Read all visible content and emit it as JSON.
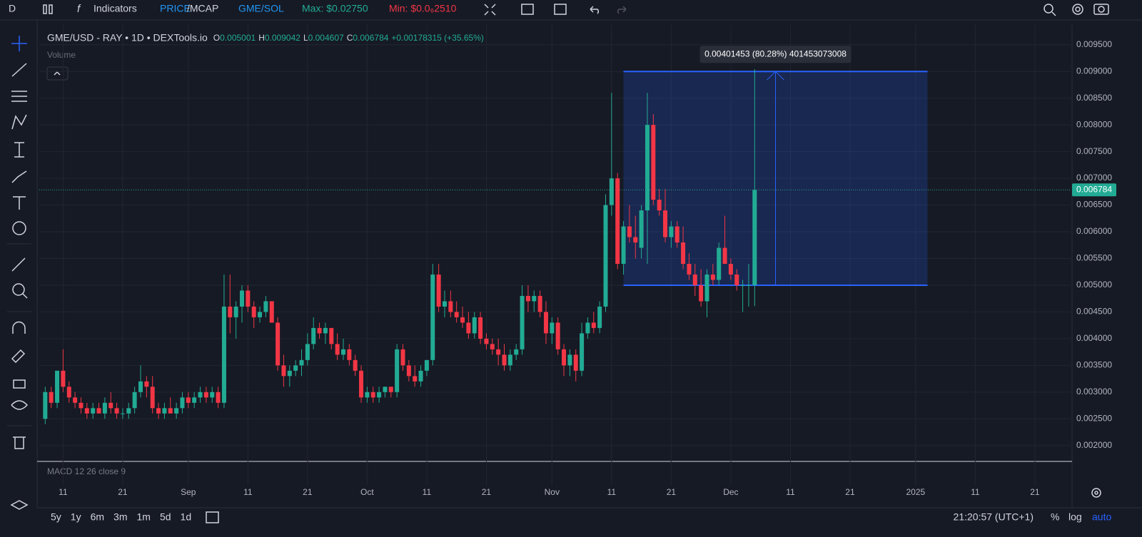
{
  "toolbar": {
    "symbol_short": "D",
    "indicators": "Indicators",
    "price": "PRICE",
    "mcap": "/MCAP",
    "pair": "GME/SOL",
    "max": "Max: $0.02750",
    "min": "Min: $0.0₆2510"
  },
  "chart_data": {
    "type": "candlestick",
    "legend": {
      "symbol": "GME/USD - RAY • 1D • DEXTools.io",
      "o_label": "O",
      "o": "0.005001",
      "h_label": "H",
      "h": "0.009042",
      "l_label": "L",
      "l": "0.004607",
      "c_label": "C",
      "c": "0.006784",
      "change": "+0.00178315 (+35.65%)",
      "volume": "Volume"
    },
    "macd": "MACD 12 26 close 9",
    "up_color": "#22ab94",
    "down_color": "#f23645",
    "open": [
      0.0025,
      0.003,
      0.0028,
      0.0034,
      0.0031,
      0.0029,
      0.0028,
      0.0027,
      0.0026,
      0.0027,
      0.0026,
      0.0028,
      0.0027,
      0.0026,
      0.0026,
      0.0027,
      0.003,
      0.0032,
      0.0031,
      0.0027,
      0.0026,
      0.0027,
      0.0026,
      0.0027,
      0.0029,
      0.0028,
      0.0029,
      0.003,
      0.0029,
      0.003,
      0.0028,
      0.0046,
      0.0044,
      0.0046,
      0.0049,
      0.0046,
      0.0044,
      0.0045,
      0.0047,
      0.0043,
      0.0035,
      0.0033,
      0.0034,
      0.0035,
      0.0036,
      0.0039,
      0.0042,
      0.0041,
      0.0042,
      0.0039,
      0.0037,
      0.0038,
      0.0036,
      0.0034,
      0.0029,
      0.003,
      0.0029,
      0.003,
      0.0031,
      0.003,
      0.0038,
      0.0035,
      0.0033,
      0.0032,
      0.0034,
      0.0036,
      0.0052,
      0.0046,
      0.0047,
      0.0045,
      0.0044,
      0.0043,
      0.0041,
      0.0044,
      0.004,
      0.0039,
      0.0038,
      0.0037,
      0.0035,
      0.0037,
      0.0038,
      0.0048,
      0.0047,
      0.0048,
      0.0045,
      0.0041,
      0.0043,
      0.0038,
      0.0035,
      0.0037,
      0.0034,
      0.0041,
      0.0043,
      0.0042,
      0.0046,
      0.0065,
      0.007,
      0.0054,
      0.0061,
      0.0059,
      0.0057,
      0.0064,
      0.008,
      0.0066,
      0.0064,
      0.0059,
      0.0061,
      0.0058,
      0.0054,
      0.0052,
      0.005,
      0.0047,
      0.0052,
      0.0051,
      0.0057,
      0.0054,
      0.0052,
      0.005,
      0.005,
      0.005001
    ],
    "high": [
      0.0031,
      0.0031,
      0.0034,
      0.0038,
      0.0032,
      0.003,
      0.0029,
      0.0028,
      0.0028,
      0.0028,
      0.0029,
      0.003,
      0.0028,
      0.0027,
      0.0028,
      0.0031,
      0.0035,
      0.0033,
      0.0033,
      0.0028,
      0.0028,
      0.0029,
      0.0028,
      0.003,
      0.003,
      0.003,
      0.0031,
      0.0031,
      0.0031,
      0.0031,
      0.0052,
      0.0052,
      0.0047,
      0.005,
      0.005,
      0.0047,
      0.0046,
      0.0048,
      0.0047,
      0.0044,
      0.0037,
      0.0035,
      0.0036,
      0.0038,
      0.0041,
      0.0044,
      0.0043,
      0.0043,
      0.0042,
      0.0041,
      0.004,
      0.0039,
      0.0037,
      0.0035,
      0.0031,
      0.0031,
      0.0031,
      0.0031,
      0.0031,
      0.0039,
      0.0039,
      0.0036,
      0.0035,
      0.0035,
      0.0036,
      0.0054,
      0.0054,
      0.0049,
      0.0049,
      0.0047,
      0.0046,
      0.0045,
      0.0045,
      0.0045,
      0.0041,
      0.004,
      0.004,
      0.0039,
      0.0038,
      0.0039,
      0.005,
      0.005,
      0.0049,
      0.0049,
      0.0047,
      0.0044,
      0.0044,
      0.0039,
      0.0038,
      0.0038,
      0.0043,
      0.0044,
      0.0045,
      0.0047,
      0.0067,
      0.0086,
      0.0071,
      0.0062,
      0.0065,
      0.0063,
      0.0065,
      0.0086,
      0.0082,
      0.0068,
      0.0068,
      0.0062,
      0.0062,
      0.0061,
      0.0056,
      0.0054,
      0.0053,
      0.0053,
      0.0054,
      0.0058,
      0.0063,
      0.0055,
      0.0053,
      0.0051,
      0.0054,
      0.009042
    ],
    "low": [
      0.0024,
      0.0027,
      0.0027,
      0.003,
      0.0028,
      0.0027,
      0.0026,
      0.0025,
      0.0025,
      0.0026,
      0.0025,
      0.0026,
      0.0025,
      0.0025,
      0.0025,
      0.0026,
      0.0029,
      0.0029,
      0.0026,
      0.0025,
      0.0025,
      0.0026,
      0.0025,
      0.0026,
      0.0027,
      0.0027,
      0.0028,
      0.0028,
      0.0028,
      0.0027,
      0.0027,
      0.0041,
      0.004,
      0.0043,
      0.0045,
      0.0042,
      0.0043,
      0.0044,
      0.0043,
      0.0034,
      0.0031,
      0.0031,
      0.0033,
      0.0033,
      0.0035,
      0.0038,
      0.004,
      0.0039,
      0.0038,
      0.0036,
      0.0036,
      0.0035,
      0.0033,
      0.0028,
      0.0028,
      0.0028,
      0.0028,
      0.0029,
      0.0029,
      0.0029,
      0.0034,
      0.0032,
      0.0031,
      0.0031,
      0.0033,
      0.0035,
      0.0045,
      0.0044,
      0.0044,
      0.0043,
      0.0042,
      0.004,
      0.004,
      0.0039,
      0.0038,
      0.0037,
      0.0035,
      0.0034,
      0.0034,
      0.0036,
      0.0037,
      0.0045,
      0.0045,
      0.0044,
      0.0039,
      0.0039,
      0.0037,
      0.0033,
      0.0033,
      0.0032,
      0.0033,
      0.004,
      0.0041,
      0.0041,
      0.0045,
      0.0063,
      0.0053,
      0.0052,
      0.0058,
      0.0055,
      0.0055,
      0.0054,
      0.0065,
      0.0063,
      0.0058,
      0.0057,
      0.0057,
      0.0053,
      0.0051,
      0.0048,
      0.0046,
      0.0044,
      0.005,
      0.005,
      0.0054,
      0.0051,
      0.0049,
      0.0045,
      0.0046,
      0.004607
    ],
    "close": [
      0.003,
      0.0028,
      0.0034,
      0.0031,
      0.0029,
      0.0028,
      0.0027,
      0.0026,
      0.0027,
      0.0026,
      0.0028,
      0.0027,
      0.0026,
      0.0026,
      0.0027,
      0.003,
      0.0032,
      0.0031,
      0.0027,
      0.0026,
      0.0027,
      0.0026,
      0.0027,
      0.0029,
      0.0028,
      0.0029,
      0.003,
      0.0029,
      0.003,
      0.0028,
      0.0046,
      0.0044,
      0.0046,
      0.0049,
      0.0046,
      0.0044,
      0.0045,
      0.0047,
      0.0043,
      0.0035,
      0.0033,
      0.0034,
      0.0035,
      0.0036,
      0.0039,
      0.0042,
      0.0041,
      0.0042,
      0.0039,
      0.0037,
      0.0038,
      0.0036,
      0.0034,
      0.0029,
      0.003,
      0.0029,
      0.003,
      0.0031,
      0.003,
      0.0038,
      0.0035,
      0.0033,
      0.0032,
      0.0034,
      0.0036,
      0.0052,
      0.0046,
      0.0047,
      0.0045,
      0.0044,
      0.0043,
      0.0041,
      0.0044,
      0.004,
      0.0039,
      0.0038,
      0.0037,
      0.0035,
      0.0037,
      0.0038,
      0.0048,
      0.0047,
      0.0048,
      0.0045,
      0.0041,
      0.0043,
      0.0038,
      0.0035,
      0.0037,
      0.0034,
      0.0041,
      0.0043,
      0.0042,
      0.0046,
      0.0065,
      0.007,
      0.0054,
      0.0061,
      0.0059,
      0.0058,
      0.0064,
      0.008,
      0.0066,
      0.0064,
      0.0059,
      0.0061,
      0.0058,
      0.0054,
      0.0052,
      0.005,
      0.0047,
      0.0052,
      0.0051,
      0.0057,
      0.0054,
      0.0052,
      0.005,
      0.005,
      0.005,
      0.006784
    ],
    "xlim": [
      -1,
      172
    ],
    "xticks": [
      {
        "value": 3,
        "label": "11"
      },
      {
        "value": 13,
        "label": "21"
      },
      {
        "value": 24,
        "label": "Sep"
      },
      {
        "value": 34,
        "label": "11"
      },
      {
        "value": 44,
        "label": "21"
      },
      {
        "value": 54,
        "label": "Oct"
      },
      {
        "value": 64,
        "label": "11"
      },
      {
        "value": 74,
        "label": "21"
      },
      {
        "value": 85,
        "label": "Nov"
      },
      {
        "value": 95,
        "label": "11"
      },
      {
        "value": 105,
        "label": "21"
      },
      {
        "value": 115,
        "label": "Dec"
      },
      {
        "value": 125,
        "label": "11"
      },
      {
        "value": 135,
        "label": "21"
      },
      {
        "value": 146,
        "label": "2025"
      },
      {
        "value": 156,
        "label": "11"
      },
      {
        "value": 166,
        "label": "21"
      }
    ],
    "ylim": [
      0.00173,
      0.00987
    ],
    "yticks": [
      {
        "value": 0.002,
        "label": "0.002000"
      },
      {
        "value": 0.0025,
        "label": "0.002500"
      },
      {
        "value": 0.003,
        "label": "0.003000"
      },
      {
        "value": 0.0035,
        "label": "0.003500"
      },
      {
        "value": 0.004,
        "label": "0.004000"
      },
      {
        "value": 0.0045,
        "label": "0.004500"
      },
      {
        "value": 0.005,
        "label": "0.005000"
      },
      {
        "value": 0.0055,
        "label": "0.005500"
      },
      {
        "value": 0.006,
        "label": "0.006000"
      },
      {
        "value": 0.0065,
        "label": "0.006500"
      },
      {
        "value": 0.007,
        "label": "0.007000"
      },
      {
        "value": 0.0075,
        "label": "0.007500"
      },
      {
        "value": 0.008,
        "label": "0.008000"
      },
      {
        "value": 0.0085,
        "label": "0.008500"
      },
      {
        "value": 0.009,
        "label": "0.009000"
      },
      {
        "value": 0.0095,
        "label": "0.009500"
      }
    ],
    "grid": true,
    "last_price": {
      "value": 0.006784,
      "label": "0.006784"
    },
    "measure": {
      "from": 0.005,
      "to": 0.009,
      "x_from": 97,
      "x_to": 148,
      "label": "0.00401453 (80.28%) 401453073008",
      "color": "#2962ff"
    }
  },
  "bottom_bar": {
    "ranges": [
      "5y",
      "1y",
      "6m",
      "3m",
      "1m",
      "5d",
      "1d"
    ],
    "time": "21:20:57 (UTC+1)",
    "percent": "%",
    "log": "log",
    "auto": "auto"
  }
}
